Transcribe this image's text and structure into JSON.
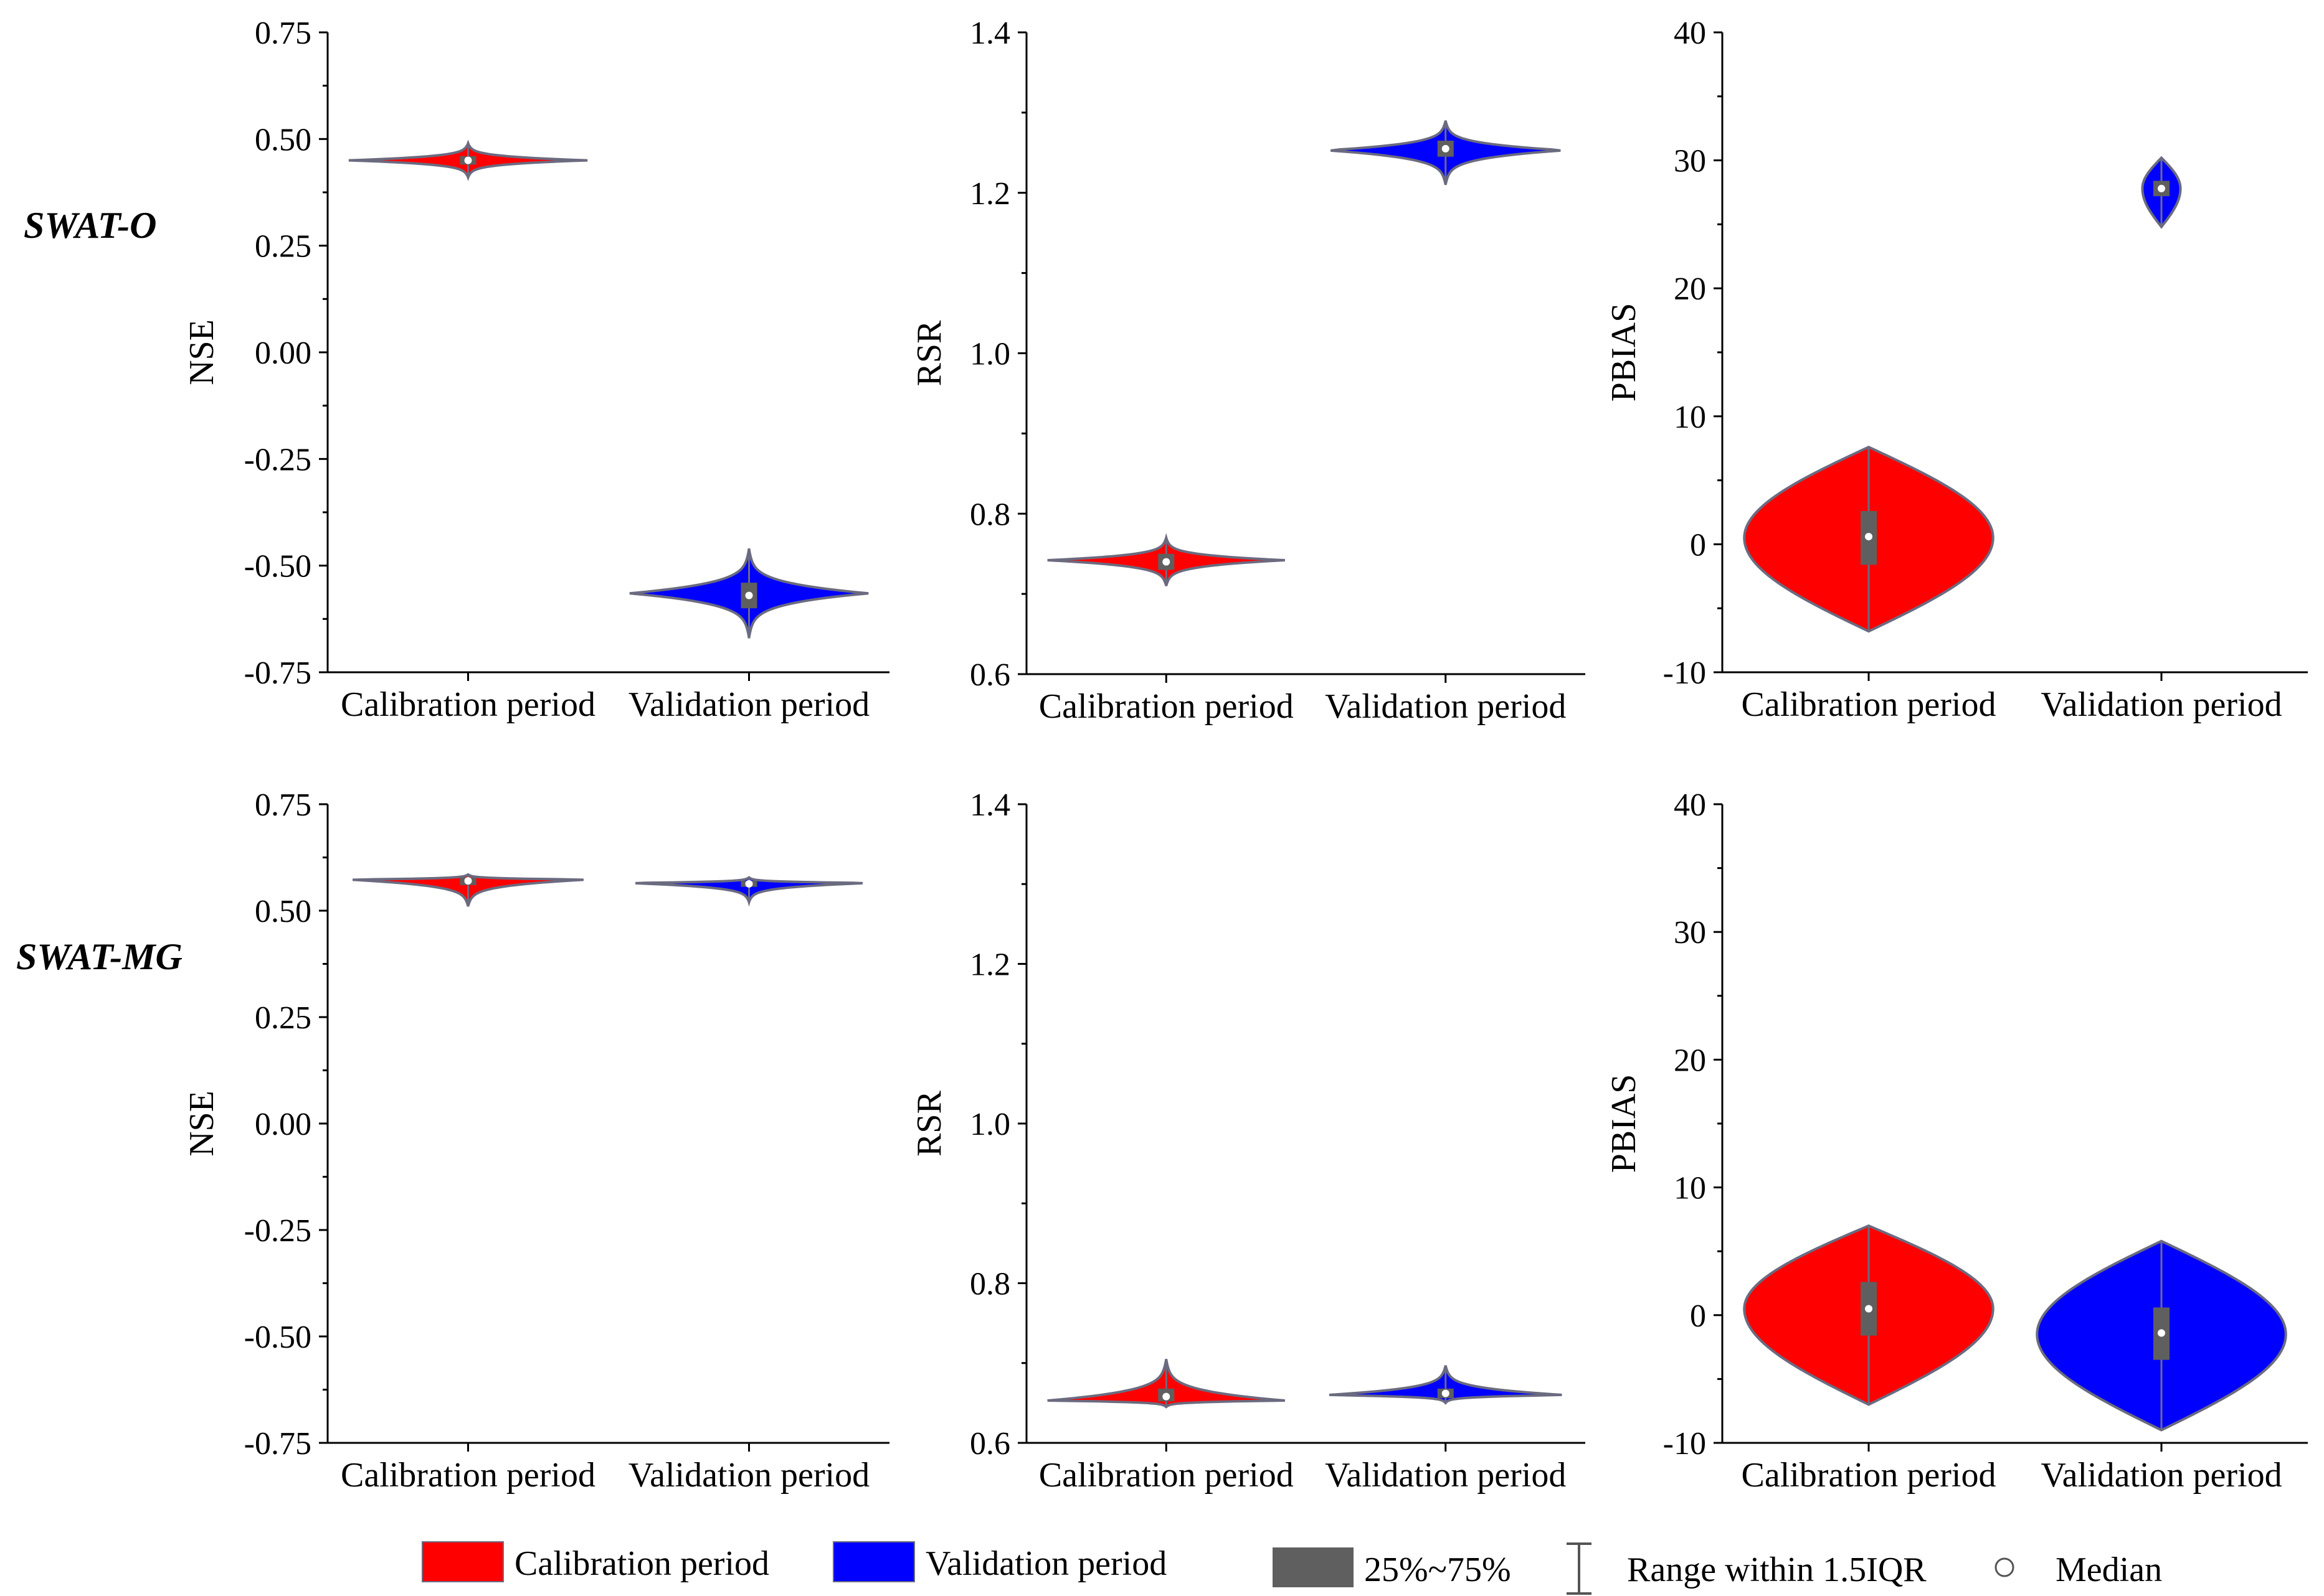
{
  "colors": {
    "calibration": "#ff0000",
    "validation": "#0000ff",
    "violin_outline": "#6b6b80",
    "box": "#5f5f5f",
    "median": "#ffffff"
  },
  "row_labels": [
    "SWAT-O",
    "SWAT-MG"
  ],
  "legend": {
    "calibration_label": "Calibration period",
    "validation_label": "Validation period",
    "box_label": "25%~75%",
    "range_label": "Range within 1.5IQR",
    "median_label": "Median"
  },
  "chart_data": [
    {
      "type": "violin",
      "row": "SWAT-O",
      "ylabel": "NSE",
      "ylim": [
        -0.75,
        0.75
      ],
      "yticks": [
        0.75,
        0.5,
        0.25,
        0.0,
        -0.25,
        -0.5,
        -0.75
      ],
      "ytick_labels": [
        "0.75",
        "0.50",
        "0.25",
        "0.00",
        "-0.25",
        "-0.50",
        "-0.75"
      ],
      "categories": [
        "Calibration period",
        "Validation period"
      ],
      "series": [
        {
          "category": "Calibration period",
          "color": "calibration",
          "min": 0.41,
          "max": 0.49,
          "q1": 0.44,
          "q3": 0.46,
          "median": 0.45,
          "mode": 0.45,
          "width": 0.85,
          "profile": "sharp"
        },
        {
          "category": "Validation period",
          "color": "validation",
          "min": -0.67,
          "max": -0.46,
          "q1": -0.6,
          "q3": -0.54,
          "median": -0.57,
          "mode": -0.565,
          "width": 0.85,
          "profile": "sharp"
        }
      ]
    },
    {
      "type": "violin",
      "row": "SWAT-O",
      "ylabel": "RSR",
      "ylim": [
        0.6,
        1.4
      ],
      "yticks": [
        1.4,
        1.2,
        1.0,
        0.8,
        0.6
      ],
      "ytick_labels": [
        "1.4",
        "1.2",
        "1.0",
        "0.8",
        "0.6"
      ],
      "categories": [
        "Calibration period",
        "Validation period"
      ],
      "series": [
        {
          "category": "Calibration period",
          "color": "calibration",
          "min": 0.71,
          "max": 0.77,
          "q1": 0.73,
          "q3": 0.75,
          "median": 0.74,
          "mode": 0.742,
          "width": 0.85,
          "profile": "sharp"
        },
        {
          "category": "Validation period",
          "color": "validation",
          "min": 1.21,
          "max": 1.29,
          "q1": 1.245,
          "q3": 1.265,
          "median": 1.255,
          "mode": 1.253,
          "width": 0.85,
          "profile": "sharp"
        }
      ]
    },
    {
      "type": "violin",
      "row": "SWAT-O",
      "ylabel": "PBIAS",
      "ylim": [
        -10,
        40
      ],
      "yticks": [
        40,
        30,
        20,
        10,
        0,
        -10
      ],
      "ytick_labels": [
        "40",
        "30",
        "20",
        "10",
        "0",
        "-10"
      ],
      "categories": [
        "Calibration period",
        "Validation period"
      ],
      "series": [
        {
          "category": "Calibration period",
          "color": "calibration",
          "min": -6.8,
          "max": 7.6,
          "q1": -1.6,
          "q3": 2.6,
          "median": 0.6,
          "mode": 0.5,
          "width": 0.85,
          "profile": "round"
        },
        {
          "category": "Validation period",
          "color": "validation",
          "min": 24.8,
          "max": 30.2,
          "q1": 27.2,
          "q3": 28.4,
          "median": 27.8,
          "mode": 27.8,
          "width": 0.13,
          "profile": "round"
        }
      ]
    },
    {
      "type": "violin",
      "row": "SWAT-MG",
      "ylabel": "NSE",
      "ylim": [
        -0.75,
        0.75
      ],
      "yticks": [
        0.75,
        0.5,
        0.25,
        0.0,
        -0.25,
        -0.5,
        -0.75
      ],
      "ytick_labels": [
        "0.75",
        "0.50",
        "0.25",
        "0.00",
        "-0.25",
        "-0.50",
        "-0.75"
      ],
      "categories": [
        "Calibration period",
        "Validation period"
      ],
      "series": [
        {
          "category": "Calibration period",
          "color": "calibration",
          "min": 0.51,
          "max": 0.585,
          "q1": 0.56,
          "q3": 0.578,
          "median": 0.57,
          "mode": 0.573,
          "width": 0.85,
          "profile": "sharp"
        },
        {
          "category": "Validation period",
          "color": "validation",
          "min": 0.52,
          "max": 0.578,
          "q1": 0.556,
          "q3": 0.57,
          "median": 0.563,
          "mode": 0.565,
          "width": 0.85,
          "profile": "sharp"
        }
      ]
    },
    {
      "type": "violin",
      "row": "SWAT-MG",
      "ylabel": "RSR",
      "ylim": [
        0.6,
        1.4
      ],
      "yticks": [
        1.4,
        1.2,
        1.0,
        0.8,
        0.6
      ],
      "ytick_labels": [
        "1.4",
        "1.2",
        "1.0",
        "0.8",
        "0.6"
      ],
      "categories": [
        "Calibration period",
        "Validation period"
      ],
      "series": [
        {
          "category": "Calibration period",
          "color": "calibration",
          "min": 0.645,
          "max": 0.705,
          "q1": 0.652,
          "q3": 0.668,
          "median": 0.658,
          "mode": 0.653,
          "width": 0.85,
          "profile": "sharp"
        },
        {
          "category": "Validation period",
          "color": "validation",
          "min": 0.65,
          "max": 0.697,
          "q1": 0.656,
          "q3": 0.668,
          "median": 0.662,
          "mode": 0.66,
          "width": 0.85,
          "profile": "sharp"
        }
      ]
    },
    {
      "type": "violin",
      "row": "SWAT-MG",
      "ylabel": "PBIAS",
      "ylim": [
        -10,
        40
      ],
      "yticks": [
        40,
        30,
        20,
        10,
        0,
        -10
      ],
      "ytick_labels": [
        "40",
        "30",
        "20",
        "10",
        "0",
        "-10"
      ],
      "categories": [
        "Calibration period",
        "Validation period"
      ],
      "series": [
        {
          "category": "Calibration period",
          "color": "calibration",
          "min": -7.0,
          "max": 7.0,
          "q1": -1.6,
          "q3": 2.6,
          "median": 0.5,
          "mode": 0.5,
          "width": 0.85,
          "profile": "round"
        },
        {
          "category": "Validation period",
          "color": "validation",
          "min": -9.0,
          "max": 5.8,
          "q1": -3.5,
          "q3": 0.6,
          "median": -1.4,
          "mode": -1.5,
          "width": 0.85,
          "profile": "round"
        }
      ]
    }
  ]
}
